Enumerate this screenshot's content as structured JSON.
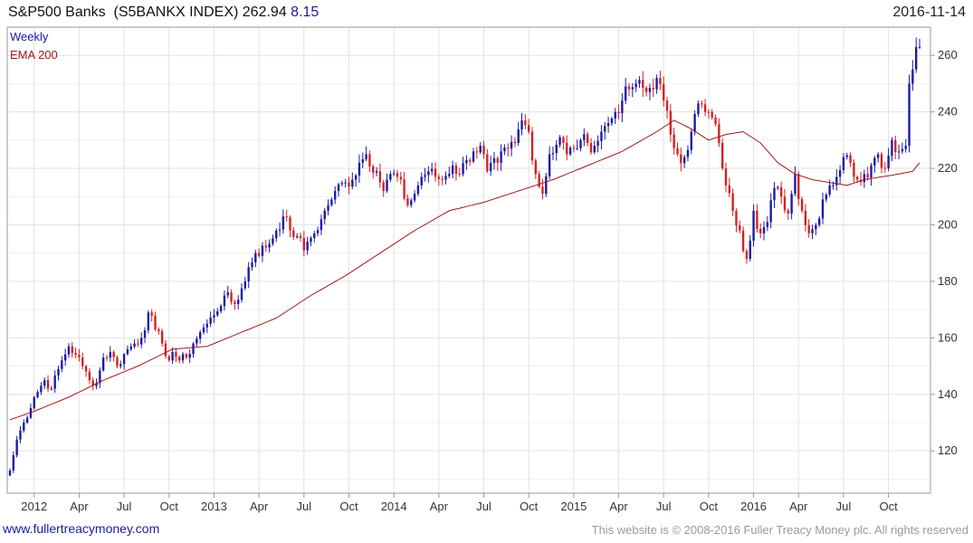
{
  "header": {
    "title": "S&P500 Banks",
    "ticker": "(S5BANKX INDEX)",
    "last": "262.94",
    "change": "8.15",
    "date": "2016-11-14"
  },
  "footer": {
    "url": "www.fullertreacymoney.com",
    "copyright": "This website is © 2008-2016 Fuller Treacy Money plc. All rights reserved"
  },
  "colors": {
    "up": "#1a1aa6",
    "down": "#d42020",
    "ema": "#a01818",
    "grid": "#e2e2e2"
  },
  "chart_data": {
    "type": "candlestick",
    "title": "S&P500 Banks (S5BANKX INDEX)",
    "legend": [
      {
        "label": "Weekly",
        "color": "#1a1aa6"
      },
      {
        "label": "EMA 200",
        "color": "#a01818"
      }
    ],
    "ylim": [
      105,
      270
    ],
    "y_ticks": [
      120,
      140,
      160,
      180,
      200,
      220,
      240,
      260
    ],
    "x_tick_labels": [
      "2012",
      "Apr",
      "Jul",
      "Oct",
      "2013",
      "Apr",
      "Jul",
      "Oct",
      "2014",
      "Apr",
      "Jul",
      "Oct",
      "2015",
      "Apr",
      "Jul",
      "Oct",
      "2016",
      "Apr",
      "Jul",
      "Oct"
    ],
    "x_tick_weeks": [
      0,
      13,
      26,
      39,
      52,
      65,
      78,
      91,
      104,
      117,
      130,
      143,
      156,
      169,
      182,
      195,
      208,
      221,
      234,
      247
    ],
    "week_start_offset": -7,
    "anchors_week": [
      -7,
      -5,
      -3,
      0,
      3,
      5,
      8,
      10,
      12,
      14,
      16,
      18,
      20,
      22,
      24,
      27,
      29,
      31,
      33,
      35,
      37,
      39,
      40,
      42,
      44,
      46,
      48,
      50,
      52,
      55,
      58,
      61,
      62,
      64,
      67,
      70,
      72,
      74,
      76,
      78,
      79,
      81,
      83,
      85,
      87,
      90,
      92,
      94,
      96,
      99,
      101,
      103,
      105,
      108,
      110,
      112,
      114,
      116,
      118,
      121,
      123,
      125,
      127,
      129,
      131,
      134,
      137,
      139,
      141,
      143,
      145,
      147,
      149,
      152,
      154,
      156,
      158,
      160,
      162,
      164,
      166,
      168,
      170,
      172,
      174,
      177,
      180,
      182,
      184,
      186,
      188,
      190,
      192,
      194,
      196,
      198,
      200,
      202,
      204,
      206,
      208,
      210,
      212,
      214,
      216,
      218,
      220,
      222,
      224,
      226,
      228,
      230,
      232,
      234,
      236,
      238,
      240,
      242,
      244,
      246,
      248,
      250,
      252,
      253,
      254,
      255,
      256
    ],
    "anchors_close": [
      113,
      124,
      130,
      139,
      145,
      142,
      152,
      157,
      154,
      150,
      145,
      144,
      153,
      155,
      150,
      156,
      158,
      160,
      169,
      163,
      158,
      152,
      155,
      152,
      153,
      158,
      162,
      165,
      168,
      175,
      172,
      180,
      185,
      190,
      192,
      198,
      203,
      198,
      196,
      191,
      194,
      197,
      202,
      207,
      212,
      215,
      216,
      222,
      225,
      219,
      212,
      218,
      217,
      207,
      211,
      217,
      219,
      217,
      216,
      221,
      218,
      223,
      226,
      228,
      219,
      222,
      227,
      229,
      237,
      233,
      218,
      211,
      225,
      231,
      225,
      227,
      230,
      229,
      228,
      233,
      236,
      240,
      244,
      248,
      250,
      247,
      252,
      244,
      232,
      225,
      224,
      233,
      243,
      240,
      238,
      229,
      214,
      205,
      198,
      188,
      205,
      197,
      201,
      213,
      210,
      204,
      218,
      205,
      197,
      200,
      209,
      214,
      217,
      224,
      222,
      216,
      218,
      221,
      225,
      220,
      230,
      226,
      228,
      250,
      255,
      263,
      263
    ],
    "ema_week": [
      -7,
      0,
      10,
      20,
      30,
      40,
      50,
      60,
      70,
      80,
      90,
      100,
      110,
      120,
      130,
      140,
      150,
      160,
      170,
      180,
      185,
      190,
      195,
      200,
      205,
      210,
      215,
      220,
      225,
      230,
      235,
      240,
      245,
      250,
      254,
      256
    ],
    "ema_value": [
      131,
      134,
      139,
      145,
      150,
      156,
      157,
      162,
      167,
      175,
      182,
      190,
      198,
      205,
      208,
      212,
      216,
      221,
      226,
      233,
      237,
      234,
      230,
      232,
      233,
      229,
      222,
      218,
      216,
      215,
      214,
      216,
      217,
      218,
      219,
      222
    ]
  }
}
